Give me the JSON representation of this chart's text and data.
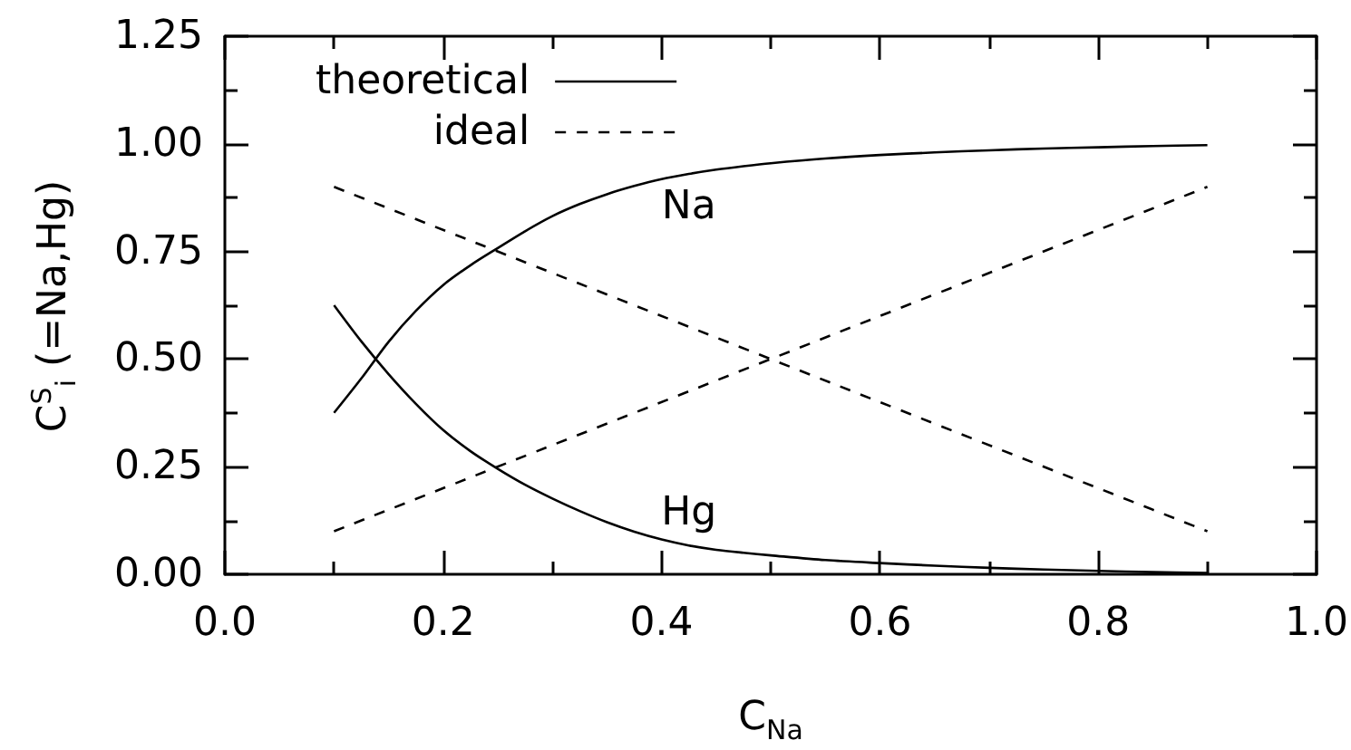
{
  "chart_data": {
    "type": "line",
    "xlabel": "C$_{Na}$",
    "ylabel": "C$^{S}$$_{i}$ (=Na,Hg)",
    "xlim": [
      0,
      1
    ],
    "xticks": [
      {
        "value": 0,
        "label": "0.0"
      },
      {
        "value": 0.1,
        "label": null
      },
      0.2,
      {
        "value": 0.3,
        "label": null
      },
      0.4,
      {
        "value": 0.5,
        "label": null
      },
      0.6,
      {
        "value": 0.7,
        "label": null
      },
      0.8,
      {
        "value": 0.9,
        "label": null
      },
      {
        "value": 1,
        "label": "1.0"
      }
    ],
    "ylim": [
      0,
      1.25
    ],
    "yticks": [
      {
        "value": 0,
        "label": "0.00"
      },
      {
        "value": 0.125,
        "label": null
      },
      0.25,
      {
        "value": 0.375,
        "label": null
      },
      {
        "value": 0.5,
        "label": "0.50"
      },
      {
        "value": 0.625,
        "label": null
      },
      0.75,
      {
        "value": 0.875,
        "label": null
      },
      {
        "value": 1,
        "label": "1.00"
      },
      {
        "value": 1.125,
        "label": null
      },
      1.25
    ],
    "legend": "top left",
    "marker": "none",
    "series": [
      {
        "name": "theoretical",
        "color": "#000000",
        "line_style": "solid",
        "x": [
          0.1,
          0.125,
          0.15,
          0.175,
          0.2,
          0.225,
          0.25,
          0.275,
          0.3,
          0.325,
          0.35,
          0.375,
          0.4,
          0.425,
          0.45,
          0.475,
          0.5,
          0.55,
          0.6,
          0.65,
          0.7,
          0.75,
          0.8,
          0.85,
          0.9
        ],
        "values": [
          0.375,
          0.455,
          0.54,
          0.612,
          0.672,
          0.718,
          0.758,
          0.797,
          0.832,
          0.86,
          0.883,
          0.902,
          0.918,
          0.93,
          0.94,
          0.948,
          0.955,
          0.966,
          0.974,
          0.98,
          0.985,
          0.989,
          0.992,
          0.995,
          0.997
        ]
      },
      {
        "color": "#000000",
        "line_style": "solid",
        "x": [
          0.1,
          0.125,
          0.15,
          0.175,
          0.2,
          0.225,
          0.25,
          0.275,
          0.3,
          0.325,
          0.35,
          0.375,
          0.4,
          0.425,
          0.45,
          0.475,
          0.5,
          0.55,
          0.6,
          0.65,
          0.7,
          0.75,
          0.8,
          0.85,
          0.9
        ],
        "values": [
          0.625,
          0.541,
          0.465,
          0.396,
          0.335,
          0.286,
          0.245,
          0.208,
          0.176,
          0.147,
          0.121,
          0.099,
          0.081,
          0.067,
          0.057,
          0.05,
          0.044,
          0.033,
          0.026,
          0.02,
          0.015,
          0.011,
          0.008,
          0.005,
          0.003
        ]
      },
      {
        "name": "ideal",
        "color": "#000000",
        "line_style": "dashed",
        "x": [
          0.1,
          0.9
        ],
        "values": [
          0.1,
          0.9
        ]
      },
      {
        "color": "#000000",
        "line_style": "dashed",
        "x": [
          0.1,
          0.9
        ],
        "values": [
          0.9,
          0.1
        ]
      }
    ],
    "annotations": [
      {
        "text": "Na",
        "x": 0.425,
        "y": 0.93
      },
      {
        "text": "Hg",
        "x": 0.425,
        "y": 0.067
      }
    ]
  }
}
